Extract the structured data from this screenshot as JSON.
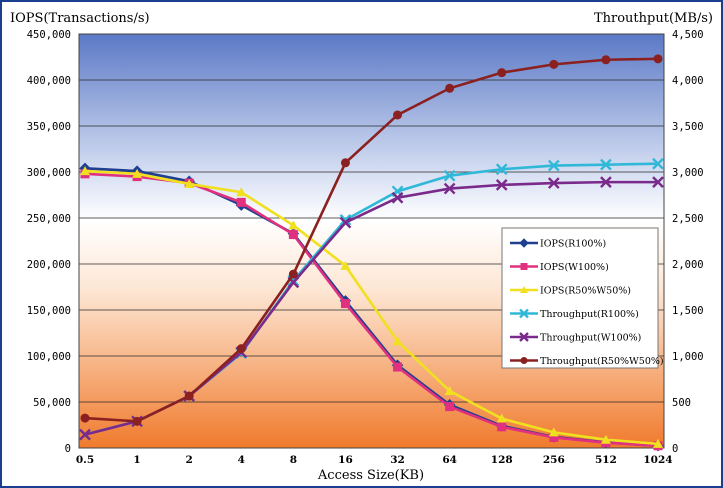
{
  "chart_data": {
    "type": "line",
    "left_axis_title": "IOPS(Transactions/s)",
    "right_axis_title": "Throuthput(MB/s)",
    "xlabel": "Access Size(KB)",
    "categories": [
      "0.5",
      "1",
      "2",
      "4",
      "8",
      "16",
      "32",
      "64",
      "128",
      "256",
      "512",
      "1024"
    ],
    "left_ylim": [
      0,
      450000
    ],
    "right_ylim": [
      0,
      4500
    ],
    "left_ticks": [
      "0",
      "50,000",
      "100,000",
      "150,000",
      "200,000",
      "250,000",
      "300,000",
      "350,000",
      "400,000",
      "450,000"
    ],
    "right_ticks": [
      "0",
      "500",
      "1,000",
      "1,500",
      "2,000",
      "2,500",
      "3,000",
      "3,500",
      "4,000",
      "4,500"
    ],
    "grid": true,
    "legend_position": "center-right",
    "series": [
      {
        "name": "IOPS(R100%)",
        "axis": "left",
        "color": "#1f3f8f",
        "marker": "diamond",
        "values": [
          304000,
          301000,
          290000,
          264000,
          233000,
          160000,
          90000,
          47000,
          24000,
          12000,
          6000,
          2500
        ]
      },
      {
        "name": "IOPS(W100%)",
        "axis": "left",
        "color": "#e0307f",
        "marker": "square",
        "values": [
          298000,
          295000,
          288000,
          267000,
          232000,
          157000,
          88000,
          45000,
          23000,
          11500,
          5800,
          2400
        ]
      },
      {
        "name": "IOPS(R50%W50%)",
        "axis": "left",
        "color": "#f0e020",
        "marker": "triangle",
        "values": [
          301000,
          298000,
          287000,
          278000,
          242000,
          198000,
          116000,
          62000,
          32000,
          17000,
          9000,
          4500
        ]
      },
      {
        "name": "Throughput(R100%)",
        "axis": "right",
        "color": "#30b8d8",
        "marker": "x",
        "values": [
          145,
          290,
          565,
          1030,
          1820,
          2480,
          2790,
          2960,
          3030,
          3070,
          3080,
          3090
        ]
      },
      {
        "name": "Throughput(W100%)",
        "axis": "right",
        "color": "#7a2a8a",
        "marker": "x",
        "values": [
          145,
          290,
          565,
          1040,
          1800,
          2450,
          2720,
          2820,
          2860,
          2880,
          2890,
          2890
        ]
      },
      {
        "name": "Throughput(R50%W50%)",
        "axis": "right",
        "color": "#8b2020",
        "marker": "circle",
        "values": [
          325,
          290,
          565,
          1080,
          1890,
          3100,
          3620,
          3910,
          4080,
          4170,
          4220,
          4230
        ]
      }
    ]
  }
}
